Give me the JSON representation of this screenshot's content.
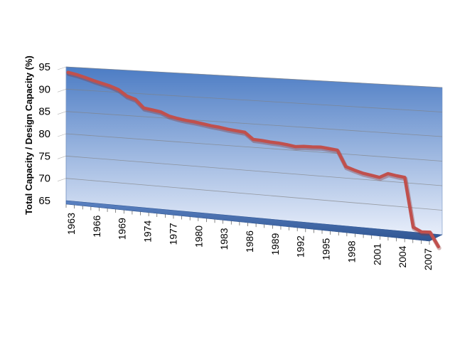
{
  "chart_data": {
    "type": "line",
    "style": "3d",
    "title": "",
    "xlabel": "",
    "ylabel": "Total Capacity / Design Capacity (%)",
    "ylim": [
      65,
      95
    ],
    "y_ticks": [
      "65",
      "70",
      "75",
      "80",
      "85",
      "90",
      "95"
    ],
    "x_tick_labels": [
      "1963",
      "1966",
      "1969",
      "1974",
      "1977",
      "1980",
      "1983",
      "1986",
      "1989",
      "1992",
      "1995",
      "1998",
      "2001",
      "2004",
      "2007"
    ],
    "grid": true,
    "legend": "none",
    "series": [
      {
        "color": "#c0504d",
        "values": [
          93.8,
          93.4,
          92.9,
          92.3,
          91.8,
          91.3,
          90.6,
          89.3,
          88.7,
          86.9,
          86.6,
          86.3,
          85.5,
          85.1,
          84.8,
          84.6,
          84.3,
          84.0,
          83.8,
          83.5,
          83.3,
          83.1,
          81.7,
          81.6,
          81.4,
          81.3,
          81.1,
          80.8,
          81.0,
          81.0,
          81.1,
          80.9,
          80.7,
          77.4,
          76.8,
          76.3,
          76.0,
          75.7,
          76.6,
          76.3,
          76.1,
          66.0,
          65.2,
          65.3,
          62.5
        ]
      }
    ],
    "colors": {
      "line": "#c0504d",
      "backwall_top": "#4c7cc4",
      "backwall_bottom": "#e8eefa",
      "side_wall": "#5d7fb3",
      "floor": "#355f9e",
      "gridline": "#808080"
    }
  }
}
